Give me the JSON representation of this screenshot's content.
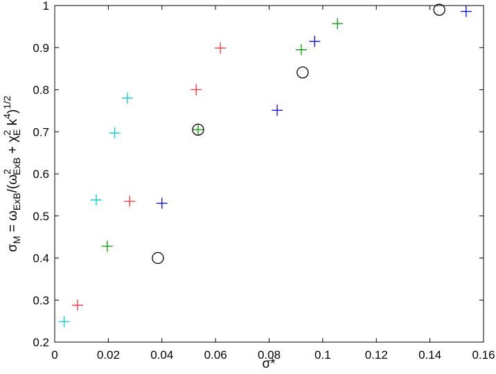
{
  "chart_data": {
    "type": "scatter",
    "title": "",
    "xlabel": "σ*",
    "ylabel": {
      "base": "σ",
      "base_sub": "M",
      "eq": " = ω",
      "sub1": "ExB",
      "mid1": "/(ω",
      "sup2": "2",
      "sub2": "ExB",
      "mid2": " + χ",
      "sup3": "2",
      "sub3": "E",
      "mid3": " k",
      "sup4": "4",
      "mid4": ")",
      "sup5": "1/2"
    },
    "xlim": [
      0,
      0.16
    ],
    "ylim": [
      0.2,
      1
    ],
    "xticks": [
      "0",
      "0.02",
      "0.04",
      "0.06",
      "0.08",
      "0.1",
      "0.12",
      "0.14",
      "0.16"
    ],
    "yticks": [
      "0.2",
      "0.3",
      "0.4",
      "0.5",
      "0.6",
      "0.7",
      "0.8",
      "0.9",
      "1"
    ],
    "grid": false,
    "series": [
      {
        "marker": "plus",
        "color": "#00cccc",
        "points": [
          [
            0.0035,
            0.249
          ],
          [
            0.0155,
            0.538
          ],
          [
            0.0224,
            0.697
          ],
          [
            0.0271,
            0.78
          ]
        ]
      },
      {
        "marker": "plus",
        "color": "#ff3333",
        "points": [
          [
            0.0085,
            0.288
          ],
          [
            0.028,
            0.535
          ],
          [
            0.0528,
            0.8
          ],
          [
            0.0618,
            0.899
          ]
        ]
      },
      {
        "marker": "plus",
        "color": "#009900",
        "points": [
          [
            0.0196,
            0.428
          ],
          [
            0.0535,
            0.705
          ],
          [
            0.092,
            0.895
          ],
          [
            0.1055,
            0.957
          ]
        ]
      },
      {
        "marker": "plus",
        "color": "#0000ff",
        "points": [
          [
            0.04,
            0.53
          ],
          [
            0.083,
            0.751
          ],
          [
            0.097,
            0.915
          ],
          [
            0.1535,
            0.986
          ]
        ]
      },
      {
        "marker": "circle",
        "color": "#000000",
        "points": [
          [
            0.0385,
            0.4
          ],
          [
            0.0535,
            0.705
          ],
          [
            0.0925,
            0.841
          ],
          [
            0.1435,
            0.99
          ]
        ]
      }
    ]
  }
}
